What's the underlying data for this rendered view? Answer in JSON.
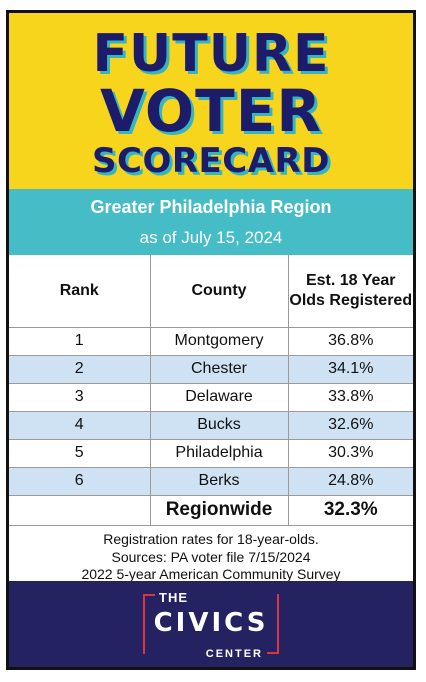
{
  "header": {
    "title_line1": "FUTURE",
    "title_line2": "VOTER",
    "title_line3": "SCORECARD",
    "region": "Greater Philadelphia Region",
    "date": "as of July 15, 2024"
  },
  "table": {
    "columns": [
      "Rank",
      "County",
      "Est. 18 Year Olds Registered"
    ],
    "rows": [
      {
        "rank": "1",
        "county": "Montgomery",
        "rate": "36.8%"
      },
      {
        "rank": "2",
        "county": "Chester",
        "rate": "34.1%"
      },
      {
        "rank": "3",
        "county": "Delaware",
        "rate": "33.8%"
      },
      {
        "rank": "4",
        "county": "Bucks",
        "rate": "32.6%"
      },
      {
        "rank": "5",
        "county": "Philadelphia",
        "rate": "30.3%"
      },
      {
        "rank": "6",
        "county": "Berks",
        "rate": "24.8%"
      }
    ],
    "total": {
      "label": "Regionwide",
      "rate": "32.3%"
    }
  },
  "notes": [
    "Registration rates for 18-year-olds.",
    "Sources: PA voter file 7/15/2024",
    "2022 5-year American Community Survey"
  ],
  "footer": {
    "logo_the": "THE",
    "logo_civics": "CIVICS",
    "logo_center": "CENTER"
  },
  "colors": {
    "yellow": "#f7d51d",
    "teal": "#45bcc6",
    "navy": "#252262",
    "title_text": "#1c1c6b",
    "row_alt": "#cfe2f3",
    "logo_red": "#d93644"
  }
}
